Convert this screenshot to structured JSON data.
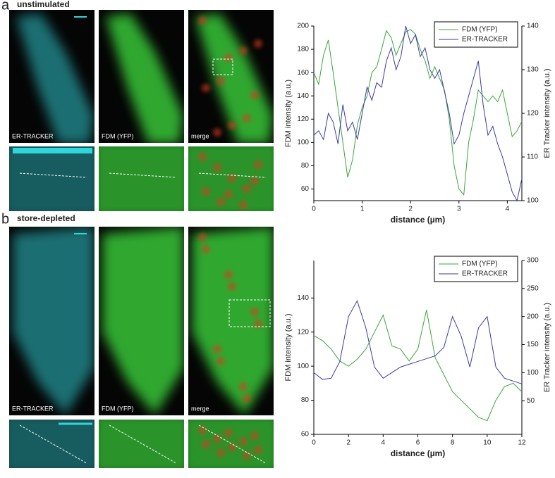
{
  "panels": [
    {
      "label": "a",
      "condition": "unstimulated",
      "images": [
        "ER-TRACKER",
        "FDM (YFP)",
        "merge"
      ]
    },
    {
      "label": "b",
      "condition": "store-depleted",
      "images": [
        "ER-TRACKER",
        "FDM (YFP)",
        "merge"
      ]
    }
  ],
  "chart_data": [
    {
      "type": "line",
      "xlabel": "distance (µm)",
      "ylabel": "FDM intensity (a.u.)",
      "y2label": "ER Tracker intensity (a.u.)",
      "xlim": [
        0,
        4.3
      ],
      "xticks": [
        0,
        1,
        2,
        3,
        4
      ],
      "ylim": [
        50,
        200
      ],
      "yticks": [
        60,
        80,
        100,
        120,
        140,
        160,
        180,
        200
      ],
      "y2lim": [
        100,
        140
      ],
      "y2ticks": [
        100,
        110,
        120,
        130,
        140
      ],
      "legend": "upper right",
      "x": [
        0,
        0.1,
        0.2,
        0.3,
        0.4,
        0.5,
        0.6,
        0.7,
        0.8,
        0.9,
        1.0,
        1.1,
        1.2,
        1.3,
        1.4,
        1.5,
        1.6,
        1.7,
        1.8,
        1.9,
        2.0,
        2.1,
        2.2,
        2.3,
        2.4,
        2.5,
        2.6,
        2.7,
        2.8,
        2.9,
        3.0,
        3.1,
        3.2,
        3.3,
        3.4,
        3.5,
        3.6,
        3.7,
        3.8,
        3.9,
        4.0,
        4.1,
        4.2,
        4.3
      ],
      "series": [
        {
          "name": "FDM (YFP)",
          "color": "#3aa63a",
          "values": [
            160,
            150,
            175,
            188,
            160,
            130,
            100,
            70,
            85,
            115,
            130,
            140,
            160,
            165,
            180,
            196,
            190,
            175,
            185,
            195,
            197,
            193,
            180,
            170,
            155,
            165,
            155,
            145,
            120,
            80,
            60,
            55,
            100,
            120,
            145,
            140,
            135,
            140,
            135,
            145,
            125,
            105,
            110,
            118
          ]
        },
        {
          "name": "ER-TRACKER",
          "color": "#3a3aa6",
          "axis": "y2",
          "values": [
            115,
            116,
            114,
            120,
            118,
            113,
            122,
            116,
            118,
            114,
            120,
            126,
            123,
            127,
            126,
            132,
            135,
            130,
            133,
            140,
            136,
            138,
            133,
            135,
            130,
            128,
            130,
            125,
            120,
            113,
            115,
            120,
            124,
            128,
            132,
            122,
            115,
            117,
            113,
            110,
            106,
            102,
            100,
            105
          ]
        }
      ]
    },
    {
      "type": "line",
      "xlabel": "distance (µm)",
      "ylabel": "FDM intensity (a.u.)",
      "y2label": "ER Tracker intensity (a.u.)",
      "xlim": [
        0,
        12
      ],
      "xticks": [
        0,
        2,
        4,
        6,
        8,
        10,
        12
      ],
      "ylim": [
        60,
        162
      ],
      "yticks": [
        60,
        80,
        100,
        120,
        140
      ],
      "y2lim": [
        -10,
        300
      ],
      "y2ticks": [
        50,
        100,
        150,
        200,
        250,
        300
      ],
      "legend": "upper right",
      "x": [
        0,
        0.5,
        1,
        1.5,
        2,
        2.5,
        3,
        3.5,
        4,
        4.5,
        5,
        5.5,
        6,
        6.5,
        7,
        7.5,
        8,
        8.5,
        9,
        9.5,
        10,
        10.5,
        11,
        11.5,
        12
      ],
      "series": [
        {
          "name": "FDM (YFP)",
          "color": "#3aa63a",
          "values": [
            118,
            115,
            110,
            103,
            100,
            104,
            110,
            120,
            130,
            112,
            110,
            103,
            110,
            133,
            105,
            95,
            85,
            80,
            75,
            70,
            68,
            80,
            88,
            90,
            85
          ]
        },
        {
          "name": "ER-TRACKER",
          "color": "#3a3aa6",
          "axis": "y2",
          "values": [
            100,
            88,
            90,
            120,
            200,
            228,
            180,
            110,
            90,
            100,
            110,
            115,
            120,
            125,
            130,
            145,
            200,
            165,
            110,
            180,
            200,
            110,
            90,
            85,
            80
          ]
        }
      ]
    }
  ]
}
